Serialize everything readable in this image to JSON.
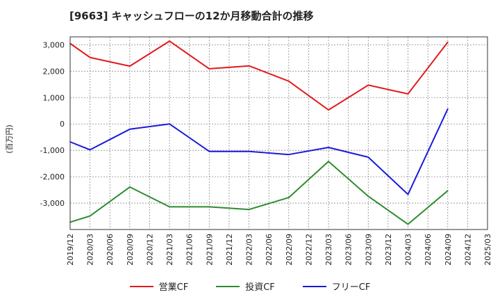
{
  "chart_data": {
    "type": "line",
    "title": "[9663]  キャッシュフローの12か月移動合計の推移",
    "ylabel": "(百万円)",
    "xlabel": "",
    "ylim": [
      -4000,
      3300
    ],
    "yticks": [
      3000,
      2000,
      1000,
      0,
      -1000,
      -2000,
      -3000
    ],
    "ytick_labels": [
      "3,000",
      "2,000",
      "1,000",
      "0",
      "-1,000",
      "-2,000",
      "-3,000"
    ],
    "x_ticks": [
      "2019/12",
      "2020/03",
      "2020/06",
      "2020/09",
      "2020/12",
      "2021/03",
      "2021/06",
      "2021/09",
      "2021/12",
      "2022/03",
      "2022/06",
      "2022/09",
      "2022/12",
      "2023/03",
      "2023/06",
      "2023/09",
      "2023/12",
      "2024/03",
      "2024/06",
      "2024/09",
      "2024/12",
      "2025/03"
    ],
    "grid": true,
    "legend_position": "bottom",
    "series": [
      {
        "name": "営業CF",
        "color": "#e31a1c",
        "points": [
          {
            "x": "2019/12",
            "y": 3050
          },
          {
            "x": "2020/03",
            "y": 2520
          },
          {
            "x": "2020/09",
            "y": 2190
          },
          {
            "x": "2021/03",
            "y": 3140
          },
          {
            "x": "2021/09",
            "y": 2090
          },
          {
            "x": "2022/03",
            "y": 2200
          },
          {
            "x": "2022/09",
            "y": 1620
          },
          {
            "x": "2023/03",
            "y": 530
          },
          {
            "x": "2023/09",
            "y": 1470
          },
          {
            "x": "2024/03",
            "y": 1140
          },
          {
            "x": "2024/09",
            "y": 3100
          }
        ]
      },
      {
        "name": "投資CF",
        "color": "#2e8b2e",
        "points": [
          {
            "x": "2019/12",
            "y": -3720
          },
          {
            "x": "2020/03",
            "y": -3490
          },
          {
            "x": "2020/09",
            "y": -2390
          },
          {
            "x": "2021/03",
            "y": -3140
          },
          {
            "x": "2021/09",
            "y": -3140
          },
          {
            "x": "2022/03",
            "y": -3240
          },
          {
            "x": "2022/09",
            "y": -2790
          },
          {
            "x": "2023/03",
            "y": -1420
          },
          {
            "x": "2023/09",
            "y": -2740
          },
          {
            "x": "2024/03",
            "y": -3800
          },
          {
            "x": "2024/09",
            "y": -2530
          }
        ]
      },
      {
        "name": "フリーCF",
        "color": "#1a1adb",
        "points": [
          {
            "x": "2019/12",
            "y": -680
          },
          {
            "x": "2020/03",
            "y": -980
          },
          {
            "x": "2020/09",
            "y": -200
          },
          {
            "x": "2021/03",
            "y": 0
          },
          {
            "x": "2021/09",
            "y": -1040
          },
          {
            "x": "2022/03",
            "y": -1040
          },
          {
            "x": "2022/09",
            "y": -1160
          },
          {
            "x": "2023/03",
            "y": -890
          },
          {
            "x": "2023/09",
            "y": -1260
          },
          {
            "x": "2024/03",
            "y": -2670
          },
          {
            "x": "2024/09",
            "y": 570
          }
        ]
      }
    ]
  }
}
